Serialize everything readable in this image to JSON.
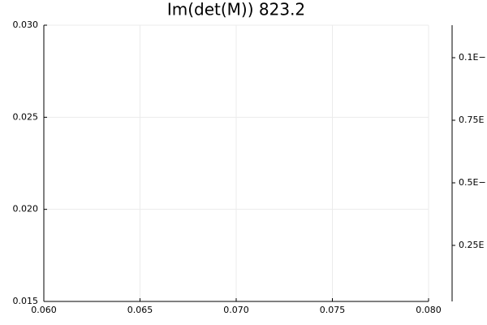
{
  "chart_data": {
    "type": "scatter",
    "title": "Im(det(M)) 823.2",
    "xlim": [
      0.06,
      0.08
    ],
    "xticks": [
      {
        "value": 0.06,
        "label": "0.060"
      },
      {
        "value": 0.065,
        "label": "0.065"
      },
      {
        "value": 0.07,
        "label": "0.070"
      },
      {
        "value": 0.075,
        "label": "0.075"
      },
      {
        "value": 0.08,
        "label": "0.080"
      }
    ],
    "ylim": [
      0.015,
      0.03
    ],
    "yticks": [
      {
        "value": 0.015,
        "label": "0.015"
      },
      {
        "value": 0.02,
        "label": "0.020"
      },
      {
        "value": 0.025,
        "label": "0.025"
      },
      {
        "value": 0.03,
        "label": "0.030"
      }
    ],
    "grid": true,
    "x": [],
    "values": [],
    "colorbar_tick_labels": [
      "0.1E−",
      "0.75E",
      "0.5E−",
      "0.25E"
    ]
  }
}
